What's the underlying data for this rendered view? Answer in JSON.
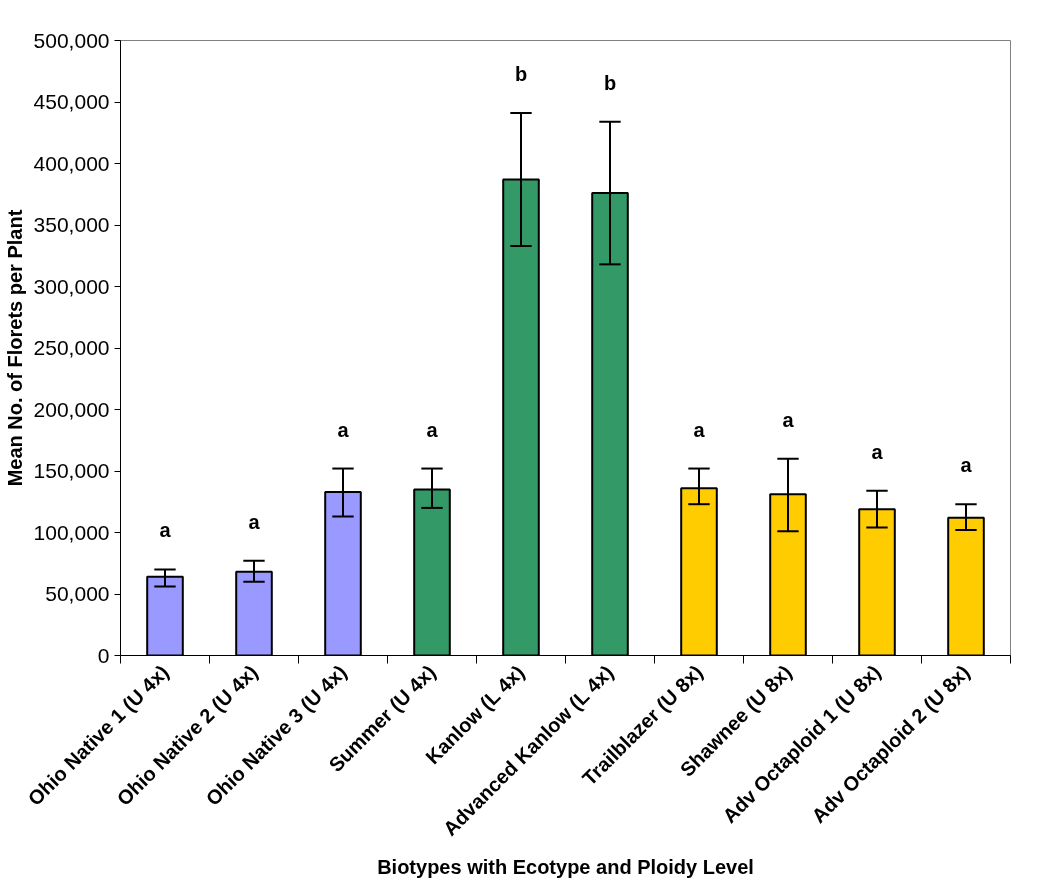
{
  "chart_data": {
    "type": "bar",
    "xlabel": "Biotypes with Ecotype and Ploidy Level",
    "ylabel": "Mean No. of Florets per Plant",
    "categories": [
      "Ohio Native 1 (U 4x)",
      "Ohio Native 2 (U 4x)",
      "Ohio Native 3 (U 4x)",
      "Summer (U 4x)",
      "Kanlow (L 4x)",
      "Advanced Kanlow (L 4x)",
      "Trailblazer (U 8x)",
      "Shawnee (U 8x)",
      "Adv Octaploid 1 (U 8x)",
      "Adv Octaploid 2 (U 8x)"
    ],
    "values": [
      64000,
      68000,
      133000,
      135000,
      387000,
      376000,
      136000,
      131000,
      119000,
      112000
    ],
    "colors": [
      "#9999ff",
      "#9999ff",
      "#9999ff",
      "#339966",
      "#339966",
      "#339966",
      "#ffcc00",
      "#ffcc00",
      "#ffcc00",
      "#ffcc00"
    ],
    "errors": [
      [
        56000,
        70000
      ],
      [
        60000,
        77000
      ],
      [
        113000,
        152000
      ],
      [
        120000,
        152000
      ],
      [
        333000,
        441000
      ],
      [
        318000,
        434000
      ],
      [
        123000,
        152000
      ],
      [
        101000,
        160000
      ],
      [
        104000,
        134000
      ],
      [
        102000,
        123000
      ]
    ],
    "ylim": [
      0,
      500000
    ],
    "yticks": [
      {
        "value": 0,
        "label": "0"
      },
      {
        "value": 50000,
        "label": "50,000"
      },
      {
        "value": 100000,
        "label": "100,000"
      },
      {
        "value": 150000,
        "label": "150,000"
      },
      {
        "value": 200000,
        "label": "200,000"
      },
      {
        "value": 250000,
        "label": "250,000"
      },
      {
        "value": 300000,
        "label": "300,000"
      },
      {
        "value": 350000,
        "label": "350,000"
      },
      {
        "value": 400000,
        "label": "400,000"
      },
      {
        "value": 450000,
        "label": "450,000"
      },
      {
        "value": 500000,
        "label": "500,000"
      }
    ],
    "annotations": [
      "a",
      "a",
      "a",
      "a",
      "b",
      "b",
      "a",
      "a",
      "a",
      "a"
    ],
    "grid": false
  }
}
